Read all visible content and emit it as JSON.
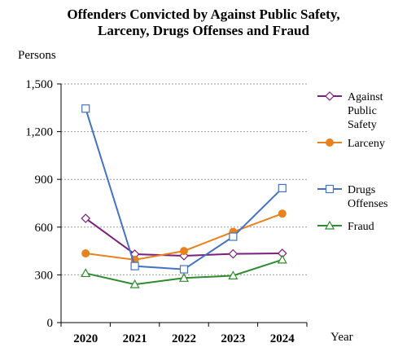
{
  "chart_data": {
    "type": "line",
    "title_lines": [
      "Offenders Convicted by Against Public Safety,",
      "Larceny, Drugs Offenses and Fraud"
    ],
    "ylabel": "Persons",
    "xlabel": "Year",
    "categories": [
      "2020",
      "2021",
      "2022",
      "2023",
      "2024"
    ],
    "ylim": [
      0,
      1500
    ],
    "yticks": [
      0,
      300,
      600,
      900,
      1200,
      1500
    ],
    "ytick_labels": [
      "0",
      "300",
      "600",
      "900",
      "1,200",
      "1,500"
    ],
    "grid": true,
    "legend_position": "right",
    "series": [
      {
        "name": "Against Public Safety",
        "legend_lines": [
          "Against",
          "Public",
          "Safety"
        ],
        "values": [
          655,
          430,
          420,
          432,
          435
        ],
        "color": "#7B1F7B",
        "marker": "diamond-open"
      },
      {
        "name": "Larceny",
        "legend_lines": [
          "Larceny"
        ],
        "values": [
          435,
          395,
          450,
          570,
          685
        ],
        "color": "#E8821E",
        "marker": "circle-filled"
      },
      {
        "name": "Drugs Offenses",
        "legend_lines": [
          "Drugs",
          "Offenses"
        ],
        "values": [
          1345,
          355,
          335,
          540,
          845
        ],
        "color": "#4472C4",
        "marker": "square-open"
      },
      {
        "name": "Fraud",
        "legend_lines": [
          "Fraud"
        ],
        "values": [
          310,
          240,
          280,
          295,
          395
        ],
        "color": "#2E8B2E",
        "marker": "triangle-open"
      }
    ]
  }
}
